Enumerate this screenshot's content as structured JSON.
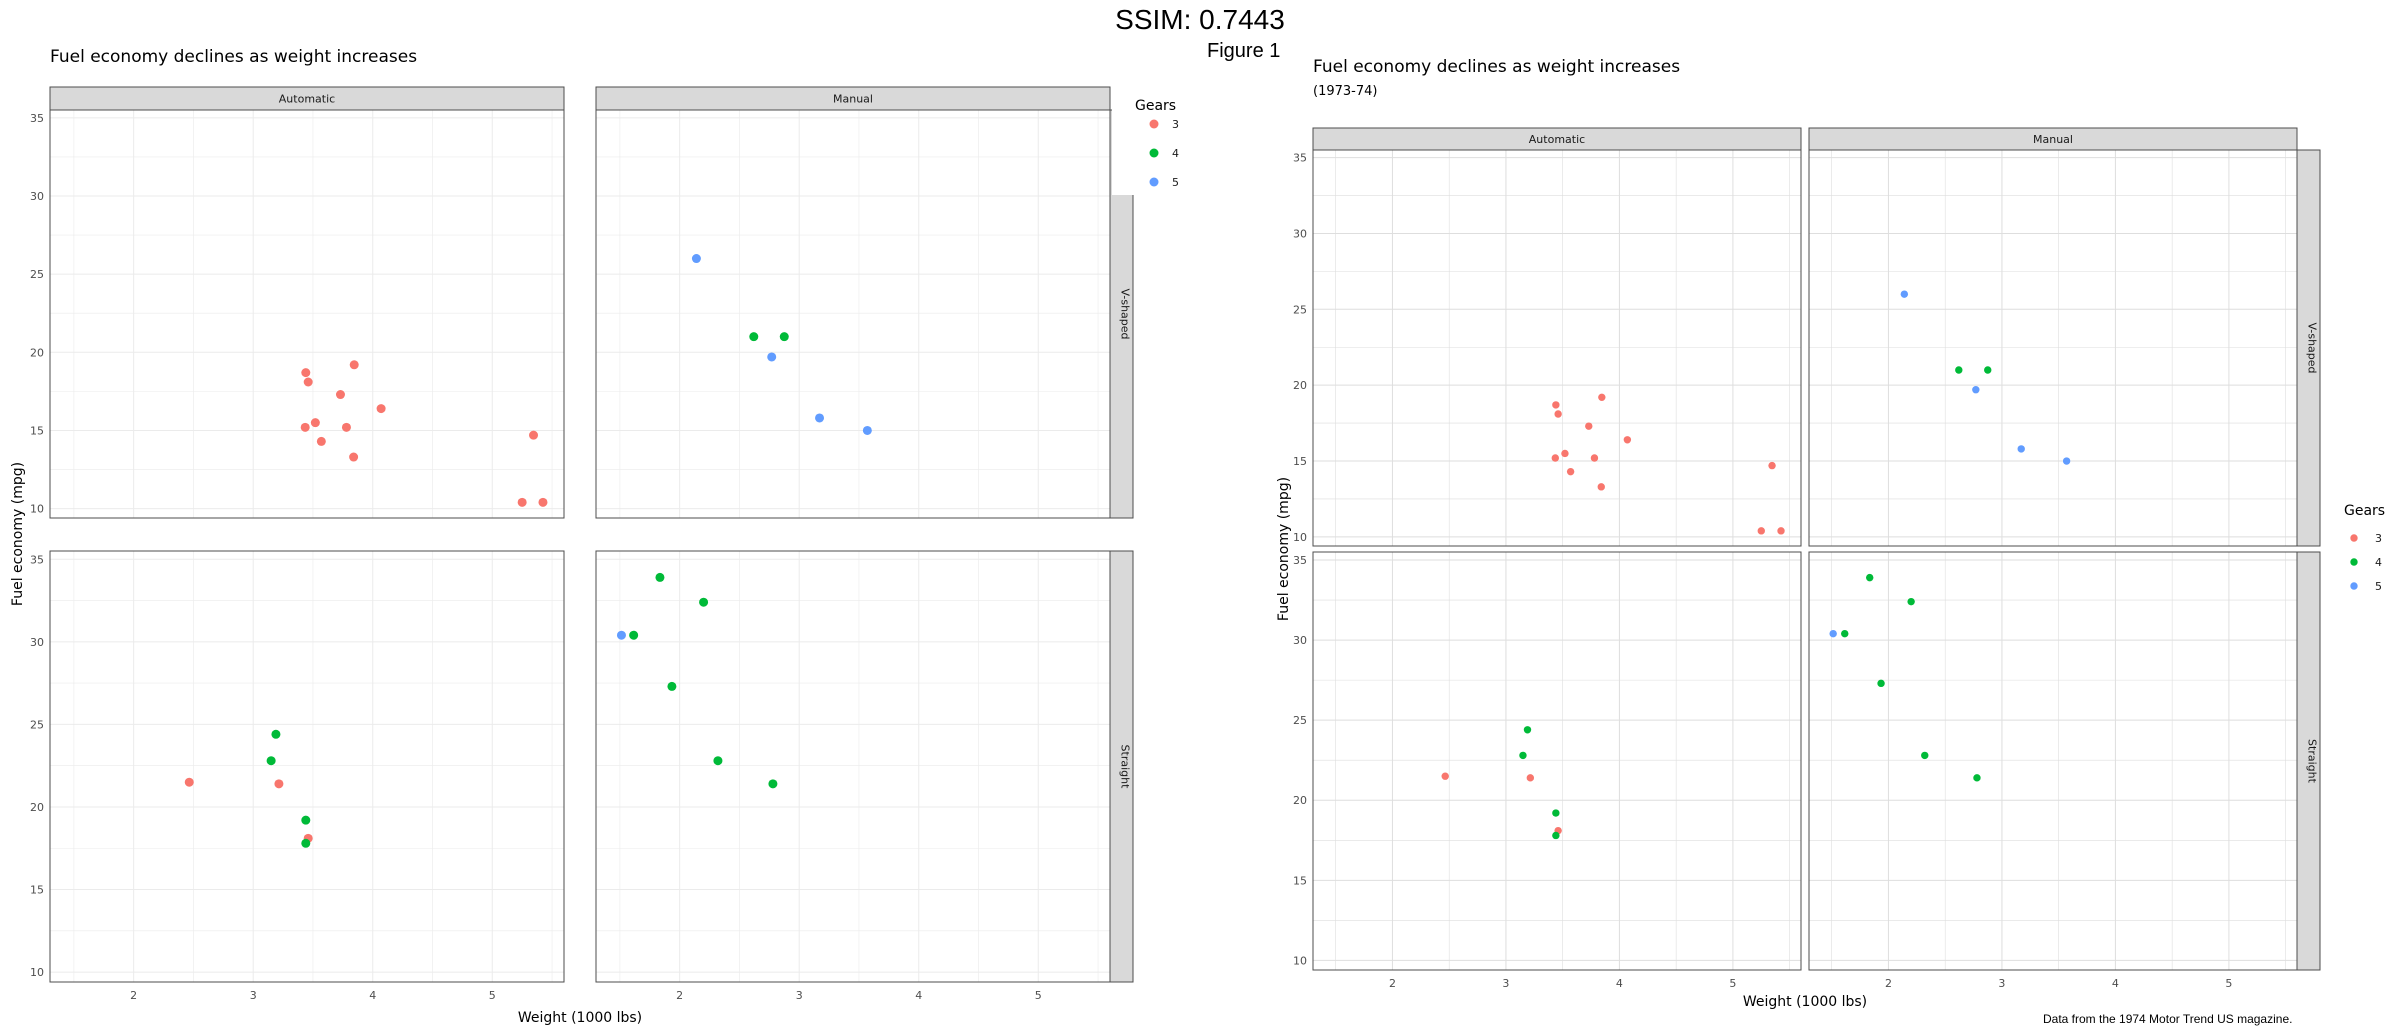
{
  "page": {
    "super_title": "SSIM: 0.7443",
    "figure_label": "Figure 1"
  },
  "chart_data": [
    {
      "type": "scatter",
      "title": "Fuel economy declines as weight increases",
      "subtitle": "",
      "caption": "",
      "xlabel": "Weight (1000 lbs)",
      "ylabel": "Fuel economy (mpg)",
      "xlim": [
        1.3,
        5.6
      ],
      "ylim": [
        9.4,
        35.5
      ],
      "x_ticks": [
        2,
        3,
        4,
        5
      ],
      "y_ticks": [
        10,
        15,
        20,
        25,
        30,
        35
      ],
      "grid": true,
      "legend_position": "right",
      "facet_columns": [
        "Automatic",
        "Manual"
      ],
      "facet_rows": [
        "V-shaped",
        "Straight"
      ],
      "legend": {
        "title": "Gears",
        "entries": [
          {
            "label": "3",
            "color": "#F8766D"
          },
          {
            "label": "4",
            "color": "#00BA38"
          },
          {
            "label": "5",
            "color": "#619CFF"
          }
        ]
      },
      "panels": [
        {
          "column": "Automatic",
          "row": "V-shaped",
          "points": [
            {
              "x": 3.44,
              "y": 18.7,
              "gears": "3"
            },
            {
              "x": 3.46,
              "y": 18.1,
              "gears": "3"
            },
            {
              "x": 3.57,
              "y": 14.3,
              "gears": "3"
            },
            {
              "x": 4.07,
              "y": 16.4,
              "gears": "3"
            },
            {
              "x": 3.73,
              "y": 17.3,
              "gears": "3"
            },
            {
              "x": 3.78,
              "y": 15.2,
              "gears": "3"
            },
            {
              "x": 5.25,
              "y": 10.4,
              "gears": "3"
            },
            {
              "x": 5.424,
              "y": 10.4,
              "gears": "3"
            },
            {
              "x": 5.345,
              "y": 14.7,
              "gears": "3"
            },
            {
              "x": 3.52,
              "y": 15.5,
              "gears": "3"
            },
            {
              "x": 3.435,
              "y": 15.2,
              "gears": "3"
            },
            {
              "x": 3.84,
              "y": 13.3,
              "gears": "3"
            },
            {
              "x": 3.845,
              "y": 19.2,
              "gears": "3"
            }
          ]
        },
        {
          "column": "Manual",
          "row": "V-shaped",
          "points": [
            {
              "x": 2.62,
              "y": 21.0,
              "gears": "4"
            },
            {
              "x": 2.875,
              "y": 21.0,
              "gears": "4"
            },
            {
              "x": 2.14,
              "y": 26.0,
              "gears": "5"
            },
            {
              "x": 3.17,
              "y": 15.8,
              "gears": "5"
            },
            {
              "x": 2.77,
              "y": 19.7,
              "gears": "5"
            },
            {
              "x": 3.57,
              "y": 15.0,
              "gears": "5"
            }
          ]
        },
        {
          "column": "Automatic",
          "row": "Straight",
          "points": [
            {
              "x": 3.215,
              "y": 21.4,
              "gears": "3"
            },
            {
              "x": 3.46,
              "y": 18.1,
              "gears": "3"
            },
            {
              "x": 2.465,
              "y": 21.5,
              "gears": "3"
            },
            {
              "x": 3.19,
              "y": 24.4,
              "gears": "4"
            },
            {
              "x": 3.15,
              "y": 22.8,
              "gears": "4"
            },
            {
              "x": 3.44,
              "y": 19.2,
              "gears": "4"
            },
            {
              "x": 3.44,
              "y": 17.8,
              "gears": "4"
            }
          ]
        },
        {
          "column": "Manual",
          "row": "Straight",
          "points": [
            {
              "x": 2.32,
              "y": 22.8,
              "gears": "4"
            },
            {
              "x": 2.2,
              "y": 32.4,
              "gears": "4"
            },
            {
              "x": 1.615,
              "y": 30.4,
              "gears": "4"
            },
            {
              "x": 1.835,
              "y": 33.9,
              "gears": "4"
            },
            {
              "x": 1.935,
              "y": 27.3,
              "gears": "4"
            },
            {
              "x": 2.78,
              "y": 21.4,
              "gears": "4"
            },
            {
              "x": 1.513,
              "y": 30.4,
              "gears": "5"
            }
          ]
        }
      ]
    },
    {
      "type": "scatter",
      "title": "Fuel economy declines as weight increases",
      "subtitle": "(1973-74)",
      "caption": "Data from the 1974 Motor Trend US magazine.",
      "xlabel": "Weight (1000 lbs)",
      "ylabel": "Fuel economy (mpg)",
      "xlim": [
        1.3,
        5.6
      ],
      "ylim": [
        9.4,
        35.5
      ],
      "x_ticks": [
        2,
        3,
        4,
        5
      ],
      "y_ticks": [
        10,
        15,
        20,
        25,
        30,
        35
      ],
      "grid": true,
      "legend_position": "right",
      "facet_columns": [
        "Automatic",
        "Manual"
      ],
      "facet_rows": [
        "V-shaped",
        "Straight"
      ],
      "legend": {
        "title": "Gears",
        "entries": [
          {
            "label": "3",
            "color": "#F8766D"
          },
          {
            "label": "4",
            "color": "#00BA38"
          },
          {
            "label": "5",
            "color": "#619CFF"
          }
        ]
      },
      "panels": [
        {
          "column": "Automatic",
          "row": "V-shaped",
          "points": [
            {
              "x": 3.44,
              "y": 18.7,
              "gears": "3"
            },
            {
              "x": 3.46,
              "y": 18.1,
              "gears": "3"
            },
            {
              "x": 3.57,
              "y": 14.3,
              "gears": "3"
            },
            {
              "x": 4.07,
              "y": 16.4,
              "gears": "3"
            },
            {
              "x": 3.73,
              "y": 17.3,
              "gears": "3"
            },
            {
              "x": 3.78,
              "y": 15.2,
              "gears": "3"
            },
            {
              "x": 5.25,
              "y": 10.4,
              "gears": "3"
            },
            {
              "x": 5.424,
              "y": 10.4,
              "gears": "3"
            },
            {
              "x": 5.345,
              "y": 14.7,
              "gears": "3"
            },
            {
              "x": 3.52,
              "y": 15.5,
              "gears": "3"
            },
            {
              "x": 3.435,
              "y": 15.2,
              "gears": "3"
            },
            {
              "x": 3.84,
              "y": 13.3,
              "gears": "3"
            },
            {
              "x": 3.845,
              "y": 19.2,
              "gears": "3"
            }
          ]
        },
        {
          "column": "Manual",
          "row": "V-shaped",
          "points": [
            {
              "x": 2.62,
              "y": 21.0,
              "gears": "4"
            },
            {
              "x": 2.875,
              "y": 21.0,
              "gears": "4"
            },
            {
              "x": 2.14,
              "y": 26.0,
              "gears": "5"
            },
            {
              "x": 3.17,
              "y": 15.8,
              "gears": "5"
            },
            {
              "x": 2.77,
              "y": 19.7,
              "gears": "5"
            },
            {
              "x": 3.57,
              "y": 15.0,
              "gears": "5"
            }
          ]
        },
        {
          "column": "Automatic",
          "row": "Straight",
          "points": [
            {
              "x": 3.215,
              "y": 21.4,
              "gears": "3"
            },
            {
              "x": 3.46,
              "y": 18.1,
              "gears": "3"
            },
            {
              "x": 2.465,
              "y": 21.5,
              "gears": "3"
            },
            {
              "x": 3.19,
              "y": 24.4,
              "gears": "4"
            },
            {
              "x": 3.15,
              "y": 22.8,
              "gears": "4"
            },
            {
              "x": 3.44,
              "y": 19.2,
              "gears": "4"
            },
            {
              "x": 3.44,
              "y": 17.8,
              "gears": "4"
            }
          ]
        },
        {
          "column": "Manual",
          "row": "Straight",
          "points": [
            {
              "x": 2.32,
              "y": 22.8,
              "gears": "4"
            },
            {
              "x": 2.2,
              "y": 32.4,
              "gears": "4"
            },
            {
              "x": 1.615,
              "y": 30.4,
              "gears": "4"
            },
            {
              "x": 1.835,
              "y": 33.9,
              "gears": "4"
            },
            {
              "x": 1.935,
              "y": 27.3,
              "gears": "4"
            },
            {
              "x": 2.78,
              "y": 21.4,
              "gears": "4"
            },
            {
              "x": 1.513,
              "y": 30.4,
              "gears": "5"
            }
          ]
        }
      ]
    }
  ]
}
